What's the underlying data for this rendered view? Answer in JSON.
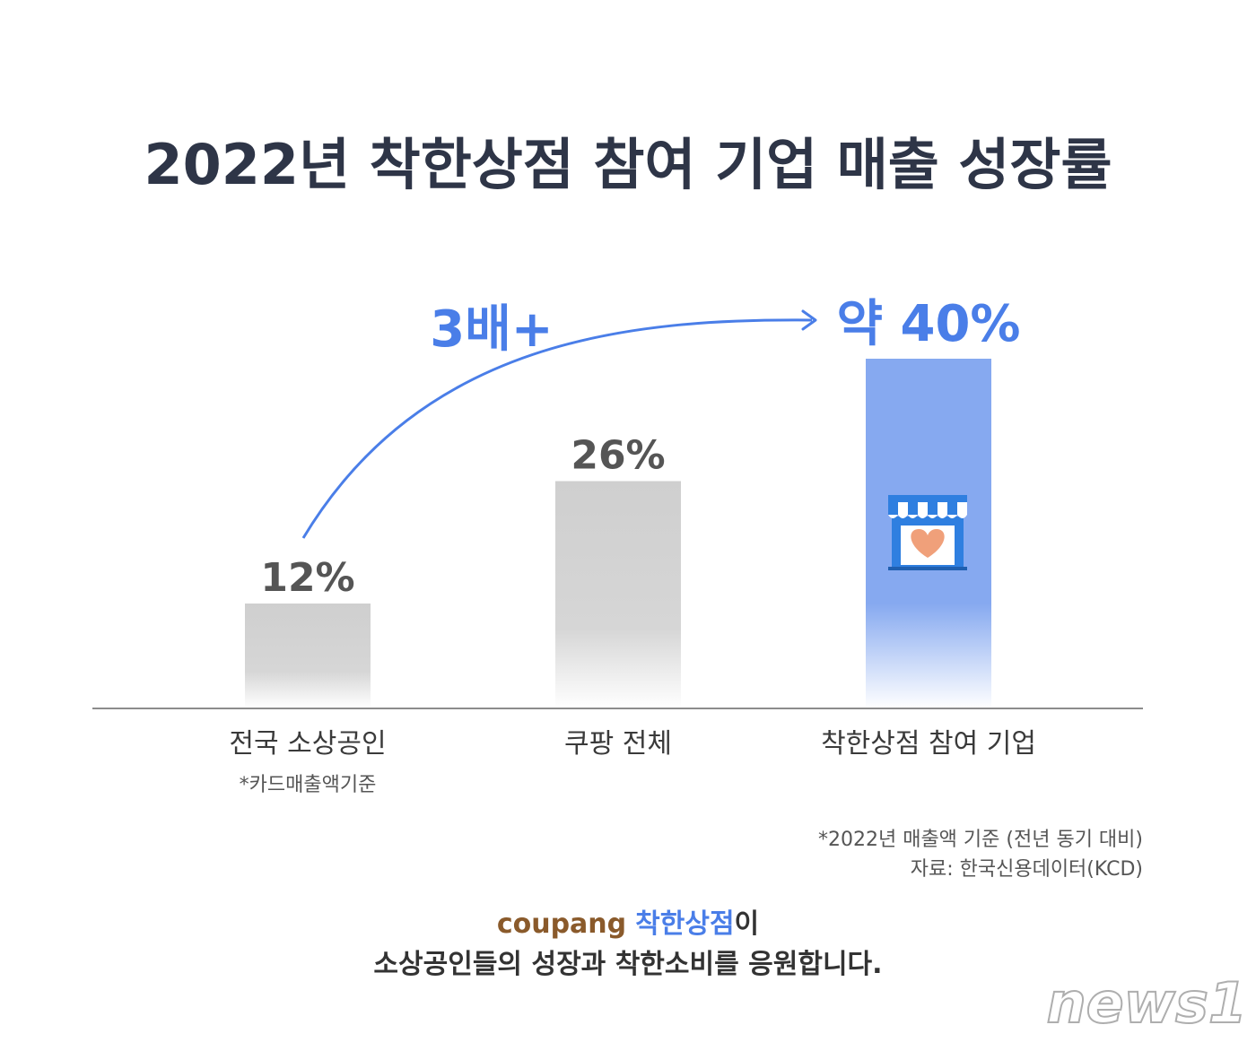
{
  "chart_data": {
    "type": "bar",
    "title": "2022년 착한상점 참여 기업 매출 성장률",
    "categories": [
      "전국 소상공인",
      "쿠팡 전체",
      "착한상점 참여 기업"
    ],
    "category_notes": [
      "*카드매출액기준",
      "",
      ""
    ],
    "values": [
      12,
      26,
      40
    ],
    "value_labels": [
      "12%",
      "26%",
      "약 40%"
    ],
    "ylim": [
      0,
      40
    ],
    "grid": false,
    "annotation": "3배+",
    "footnotes": [
      "*2022년 매출액 기준 (전년 동기 대비)",
      "자료: 한국신용데이터(KCD)"
    ]
  },
  "colors": {
    "title": "#2e3547",
    "bar_gray": "#cfcfcf",
    "bar_highlight": "#86a9f0",
    "accent": "#4a7ee8",
    "value_gray": "#555555",
    "baseline": "#8c8c8c"
  },
  "slogan": {
    "brand": "coupang",
    "program": "착한상점",
    "particle": "이",
    "line2": "소상공인들의 성장과 착한소비를 응원합니다."
  },
  "watermark": "news1",
  "icons": {
    "store": "store-heart-icon"
  }
}
